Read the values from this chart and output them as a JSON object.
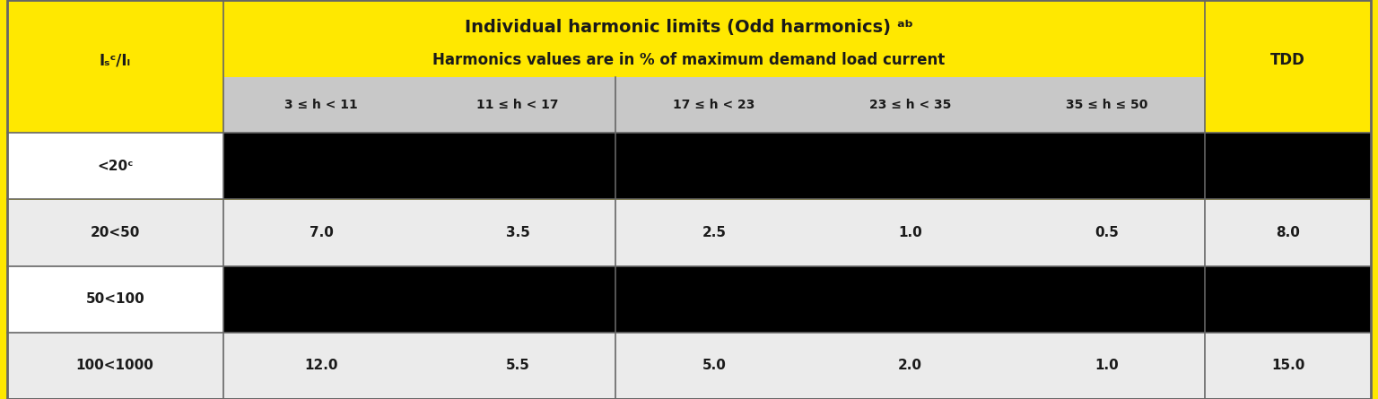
{
  "title_line1": "Individual harmonic limits (Odd harmonics) ᵃᵇ",
  "title_line2": "Harmonics values are in % of maximum demand load current",
  "col_headers": [
    "3 ≤ h < 11",
    "11 ≤ h < 17",
    "17 ≤ h < 23",
    "23 ≤ h < 35",
    "35 ≤ h ≤ 50"
  ],
  "row_labels": [
    "<20ᶜ",
    "20<50",
    "50<100",
    "100<1000"
  ],
  "row_label_col": "Iₛᶜ/Iₗ",
  "tdd_col_header": "TDD",
  "data": [
    [
      null,
      null,
      null,
      null,
      null,
      null
    ],
    [
      "7.0",
      "3.5",
      "2.5",
      "1.0",
      "0.5",
      "8.0"
    ],
    [
      null,
      null,
      null,
      null,
      null,
      null
    ],
    [
      "12.0",
      "5.5",
      "5.0",
      "2.0",
      "1.0",
      "15.0"
    ]
  ],
  "black_rows": [
    0,
    2
  ],
  "yellow_bg": "#FFE800",
  "header_gray": "#C8C8C8",
  "row_light": "#EBEBEB",
  "black_fill": "#000000",
  "text_dark": "#1A1A1A",
  "border_color": "#666666",
  "fig_width": 15.36,
  "fig_height": 4.45,
  "col_props": [
    0.13,
    0.118,
    0.118,
    0.118,
    0.118,
    0.118,
    0.1
  ]
}
